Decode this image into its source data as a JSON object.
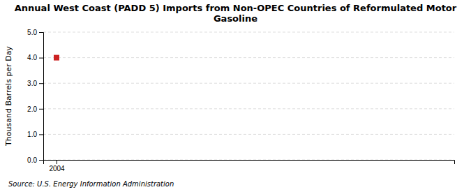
{
  "chart_data": {
    "type": "scatter",
    "title": "Annual West Coast (PADD 5) Imports from Non-OPEC Countries of Reformulated Motor\nGasoline",
    "y_label": "Thousand Barrels per Day",
    "source": "Source: U.S. Energy Information Administration",
    "x": [
      2004
    ],
    "values": [
      4.0
    ],
    "color": "#cc2222",
    "marker": "square",
    "xlim": [
      2003.7,
      2013.0
    ],
    "xticks": [
      2004
    ],
    "ylim": [
      0.0,
      5.0
    ],
    "yticks": [
      {
        "value": 0.0,
        "label": "0.0"
      },
      {
        "value": 1.0,
        "label": "1.0"
      },
      {
        "value": 2.0,
        "label": "2.0"
      },
      {
        "value": 3.0,
        "label": "3.0"
      },
      {
        "value": 4.0,
        "label": "4.0"
      },
      {
        "value": 5.0,
        "label": "5.0"
      }
    ],
    "grid": true
  }
}
